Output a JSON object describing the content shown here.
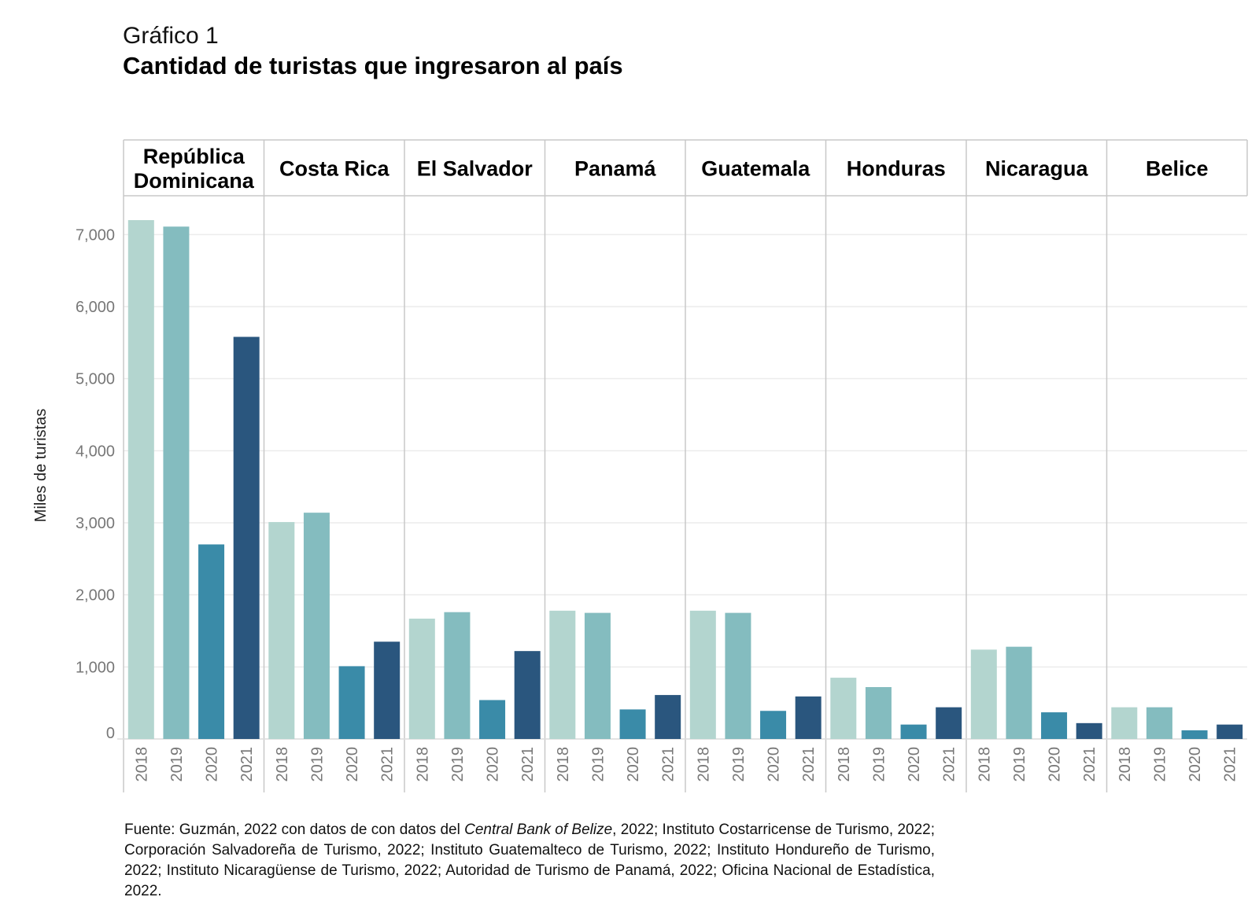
{
  "header": {
    "chart_number": "Gráfico 1",
    "title": "Cantidad de turistas que ingresaron al país"
  },
  "source": {
    "prefix": "Fuente: Guzmán, 2022 con datos de con datos del ",
    "italic": "Central Bank of Belize",
    "suffix": ", 2022; Instituto Costarricense de Turismo, 2022; Corporación Salvadoreña de Turismo, 2022; Instituto Guatemalteco de Turismo, 2022; Instituto Hondureño de Turismo, 2022; Instituto Nicaragüense de Turismo, 2022; Autoridad de Turismo de Panamá, 2022; Oficina Nacional de Estadística, 2022."
  },
  "colors": {
    "2018": "#b3d5cf",
    "2019": "#84bcbf",
    "2020": "#3a8ba8",
    "2021": "#2a567e",
    "grid": "#ececec",
    "divider": "#c8c8c8",
    "tick_text": "#777777"
  },
  "chart_data": {
    "type": "bar",
    "title": "Cantidad de turistas que ingresaron al país",
    "ylabel": "Miles de turistas",
    "xlabel": "",
    "ylim": [
      0,
      7300
    ],
    "yticks": [
      0,
      1000,
      2000,
      3000,
      4000,
      5000,
      6000,
      7000
    ],
    "ytick_labels": [
      "0",
      "1,000",
      "2,000",
      "3,000",
      "4,000",
      "5,000",
      "6,000",
      "7,000"
    ],
    "categories": [
      "2018",
      "2019",
      "2020",
      "2021"
    ],
    "facets": [
      {
        "name": "República Dominicana",
        "label_lines": [
          "República",
          "Dominicana"
        ],
        "values": [
          7200,
          7110,
          2700,
          5580
        ]
      },
      {
        "name": "Costa Rica",
        "label_lines": [
          "Costa Rica"
        ],
        "values": [
          3010,
          3140,
          1010,
          1350
        ]
      },
      {
        "name": "El Salvador",
        "label_lines": [
          "El Salvador"
        ],
        "values": [
          1670,
          1760,
          540,
          1220
        ]
      },
      {
        "name": "Panamá",
        "label_lines": [
          "Panamá"
        ],
        "values": [
          1780,
          1750,
          410,
          610
        ]
      },
      {
        "name": "Guatemala",
        "label_lines": [
          "Guatemala"
        ],
        "values": [
          1780,
          1750,
          390,
          590
        ]
      },
      {
        "name": "Honduras",
        "label_lines": [
          "Honduras"
        ],
        "values": [
          850,
          720,
          200,
          440
        ]
      },
      {
        "name": "Nicaragua",
        "label_lines": [
          "Nicaragua"
        ],
        "values": [
          1240,
          1280,
          370,
          220
        ]
      },
      {
        "name": "Belice",
        "label_lines": [
          "Belice"
        ],
        "values": [
          440,
          440,
          120,
          200
        ]
      }
    ]
  }
}
